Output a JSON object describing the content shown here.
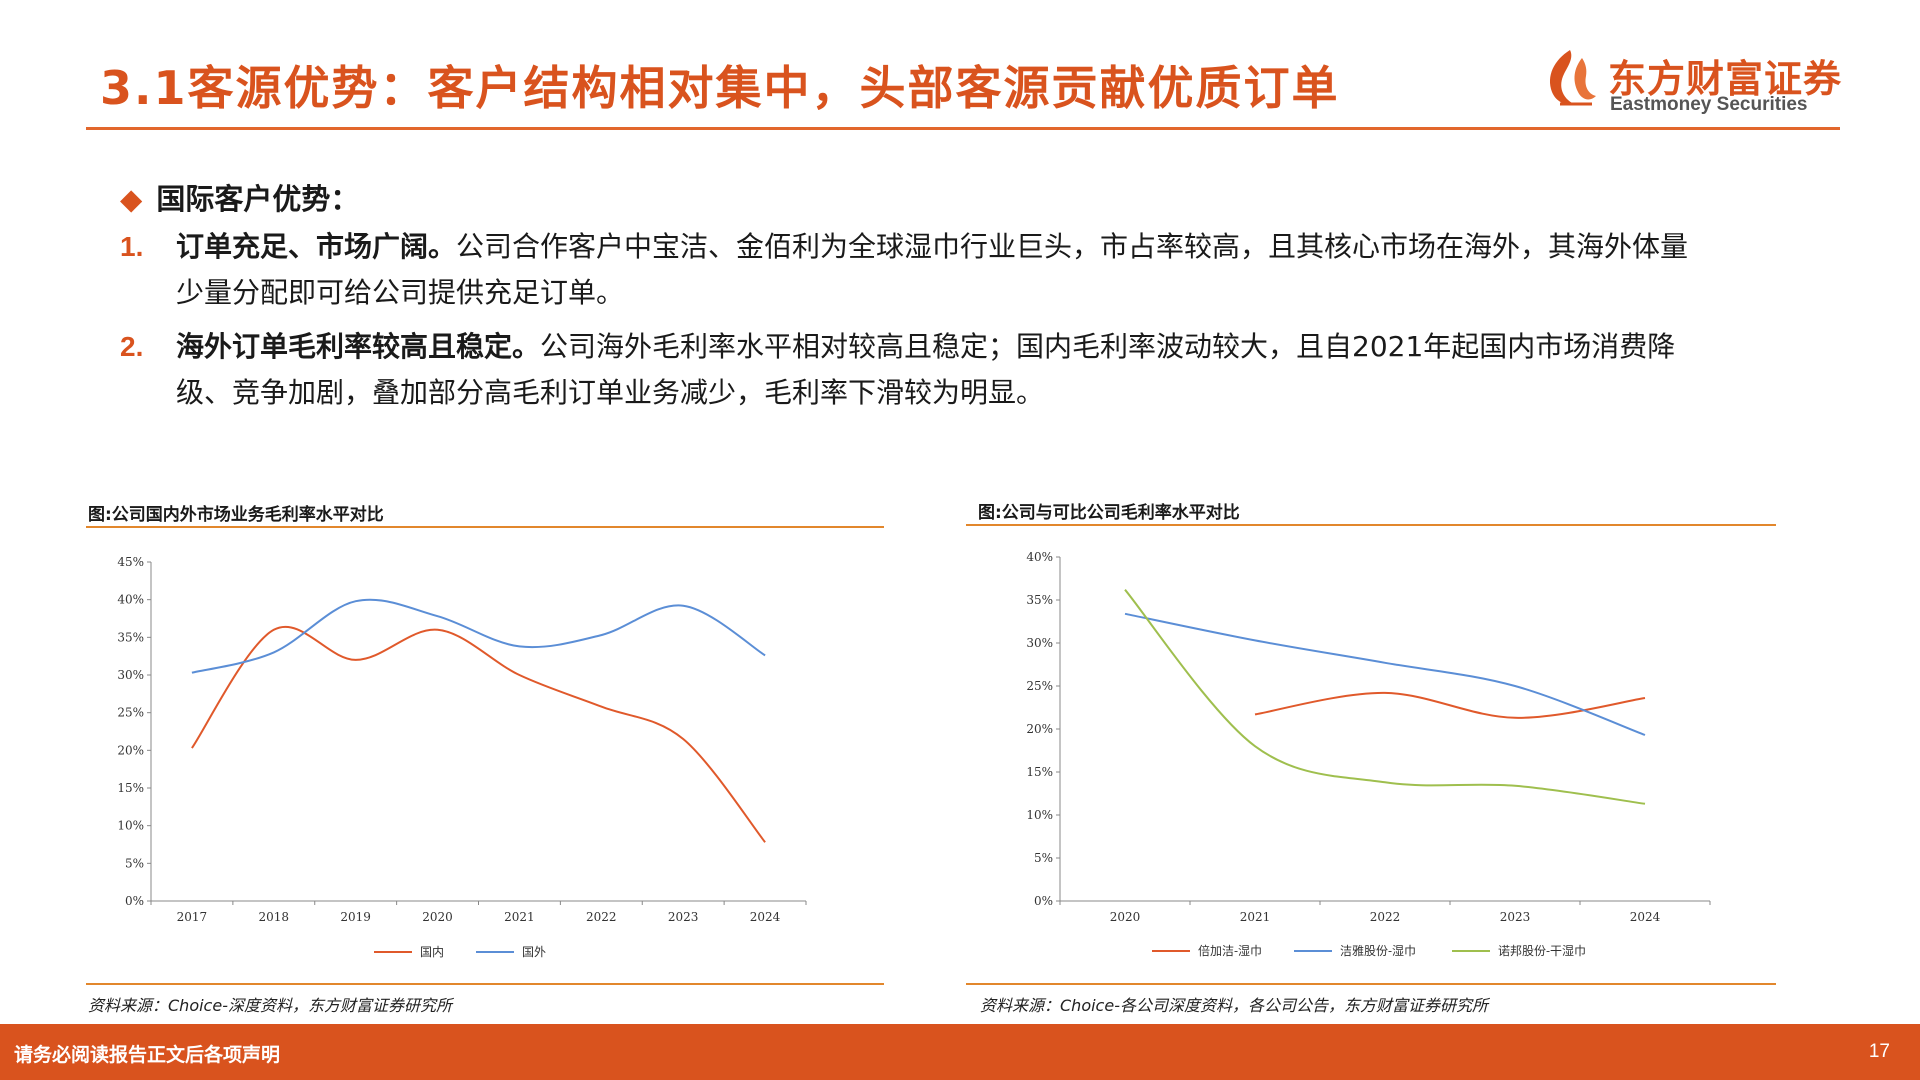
{
  "header": {
    "title": "3.1客源优势：客户结构相对集中，头部客源贡献优质订单",
    "logo_cn": "东方财富证券",
    "logo_en": "Eastmoney Securities"
  },
  "content": {
    "section_heading": "国际客户优势：",
    "points": [
      {
        "num": "1.",
        "lead": "订单充足、市场广阔。",
        "text": "公司合作客户中宝洁、金佰利为全球湿巾行业巨头，市占率较高，且其核心市场在海外，其海外体量少量分配即可给公司提供充足订单。"
      },
      {
        "num": "2.",
        "lead": "海外订单毛利率较高且稳定。",
        "text": "公司海外毛利率水平相对较高且稳定；国内毛利率波动较大，且自2021年起国内市场消费降级、竞争加剧，叠加部分高毛利订单业务减少，毛利率下滑较为明显。"
      }
    ]
  },
  "charts": {
    "left_title": "图:公司国内外市场业务毛利率水平对比",
    "left_source": "资料来源：Choice-深度资料，东方财富证券研究所",
    "right_title": "图:公司与可比公司毛利率水平对比",
    "right_source": "资料来源：Choice-各公司深度资料，各公司公告，东方财富证券研究所"
  },
  "chart_data": [
    {
      "type": "line",
      "title": "图:公司国内外市场业务毛利率水平对比",
      "categories": [
        "2017",
        "2018",
        "2019",
        "2020",
        "2021",
        "2022",
        "2023",
        "2024"
      ],
      "ylim": [
        0,
        45
      ],
      "yticks": [
        "0%",
        "5%",
        "10%",
        "15%",
        "20%",
        "25%",
        "30%",
        "35%",
        "40%",
        "45%"
      ],
      "legend_position": "bottom",
      "grid": false,
      "series": [
        {
          "name": "国内",
          "color": "#e0592b",
          "values": [
            20.3,
            36.0,
            32.0,
            36.0,
            30.0,
            25.8,
            21.5,
            7.8
          ]
        },
        {
          "name": "国外",
          "color": "#5b8ed6",
          "values": [
            30.3,
            33.0,
            39.8,
            37.8,
            33.8,
            35.3,
            39.2,
            32.6
          ]
        }
      ]
    },
    {
      "type": "line",
      "title": "图:公司与可比公司毛利率水平对比",
      "categories": [
        "2020",
        "2021",
        "2022",
        "2023",
        "2024"
      ],
      "ylim": [
        0,
        40
      ],
      "yticks": [
        "0%",
        "5%",
        "10%",
        "15%",
        "20%",
        "25%",
        "30%",
        "35%",
        "40%"
      ],
      "legend_position": "bottom",
      "grid": false,
      "series": [
        {
          "name": "倍加洁-湿巾",
          "color": "#e0592b",
          "values": [
            null,
            21.7,
            24.2,
            21.3,
            23.6
          ]
        },
        {
          "name": "洁雅股份-湿巾",
          "color": "#5b8ed6",
          "values": [
            33.4,
            30.3,
            27.7,
            25.0,
            19.3
          ]
        },
        {
          "name": "诺邦股份-干湿巾",
          "color": "#9fbf4e",
          "values": [
            36.2,
            18.0,
            13.8,
            13.4,
            11.3
          ]
        }
      ]
    }
  ],
  "footer": {
    "note": "请务必阅读报告正文后各项声明",
    "page": "17"
  },
  "colors": {
    "brand": "#d9531e",
    "rule": "#e2672c"
  }
}
